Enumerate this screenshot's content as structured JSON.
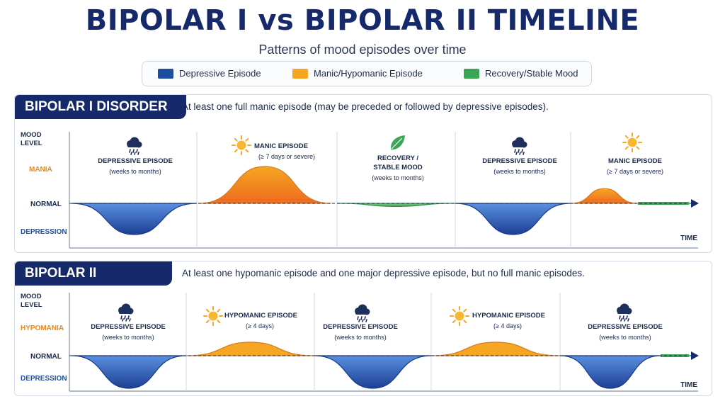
{
  "title": "BIPOLAR I vs BIPOLAR II TIMELINE",
  "subtitle": "Patterns of mood episodes over time",
  "legend": [
    {
      "label": "Depressive Episode",
      "color": "#1f4e9e"
    },
    {
      "label": "Manic/Hypomanic Episode",
      "color": "#f5a623"
    },
    {
      "label": "Recovery/Stable Mood",
      "color": "#3aa655"
    }
  ],
  "panels": {
    "bipolar1": {
      "badge": "BIPOLAR I DISORDER",
      "description": "At least one full manic episode (may be preceded or followed by depressive episodes).",
      "y_labels": {
        "mood": "MOOD",
        "level": "LEVEL",
        "high": "MANIA",
        "normal": "NORMAL",
        "low": "DEPRESSION"
      },
      "time_label": "TIME",
      "episodes": [
        {
          "type": "depressive",
          "icon": "rain-cloud-icon",
          "title": "DEPRESSIVE EPISODE",
          "detail": "(weeks to months)",
          "amplitude": -1
        },
        {
          "type": "manic",
          "icon": "sun-icon",
          "title": "MANIC EPISODE",
          "detail": "(≥ 7 days or severe)",
          "amplitude": 1
        },
        {
          "type": "recovery",
          "icon": "leaf-icon",
          "title": "RECOVERY /",
          "title2": "STABLE MOOD",
          "detail": "(weeks to months)",
          "amplitude": -0.1
        },
        {
          "type": "depressive",
          "icon": "rain-cloud-icon",
          "title": "DEPRESSIVE EPISODE",
          "detail": "(weeks to months)",
          "amplitude": -1
        },
        {
          "type": "manic",
          "icon": "sun-icon",
          "title": "MANIC EPISODE",
          "detail": "(≥ 7 days or severe)",
          "amplitude": 0.4
        }
      ]
    },
    "bipolar2": {
      "badge": "BIPOLAR II DISORDER",
      "description": "At least one hypomanic episode and one major depressive episode, but no full manic episodes.",
      "y_labels": {
        "mood": "MOOD",
        "level": "LEVEL",
        "high": "HYPOMANIA",
        "normal": "NORMAL",
        "low": "DEPRESSION"
      },
      "time_label": "TIME",
      "episodes": [
        {
          "type": "depressive",
          "icon": "rain-cloud-icon",
          "title": "DEPRESSIVE EPISODE",
          "detail": "(weeks to months)",
          "amplitude": -1
        },
        {
          "type": "manic",
          "icon": "sun-icon",
          "title": "HYPOMANIC EPISODE",
          "detail": "(≥ 4 days)",
          "amplitude": 0.5
        },
        {
          "type": "depressive",
          "icon": "rain-cloud-icon",
          "title": "DEPRESSIVE EPISODE",
          "detail": "(weeks to months)",
          "amplitude": -1
        },
        {
          "type": "manic",
          "icon": "sun-icon",
          "title": "HYPOMANIC EPISODE",
          "detail": "(≥ 4 days)",
          "amplitude": 0.5
        },
        {
          "type": "depressive",
          "icon": "rain-cloud-icon",
          "title": "DEPRESSIVE EPISODE",
          "detail": "(weeks to months)",
          "amplitude": -1
        }
      ]
    }
  }
}
